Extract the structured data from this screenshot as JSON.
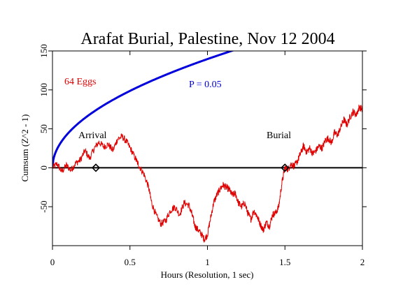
{
  "chart_data": {
    "type": "line",
    "title": "Arafat Burial, Palestine, Nov 12 2004",
    "xlabel": "Hours (Resolution, 1 sec)",
    "ylabel": "Cumsum (Z^2 - 1)",
    "xlim": [
      0,
      2
    ],
    "ylim": [
      -100,
      150
    ],
    "x_ticks": [
      {
        "value": 0,
        "label": "0"
      },
      {
        "value": 0.5,
        "label": "0.5"
      },
      {
        "value": 1,
        "label": "1"
      },
      {
        "value": 1.5,
        "label": "1.5"
      },
      {
        "value": 2,
        "label": "2"
      }
    ],
    "y_ticks": [
      {
        "value": -50,
        "label": "-50"
      },
      {
        "value": 0,
        "label": "0"
      },
      {
        "value": 50,
        "label": "50"
      },
      {
        "value": 100,
        "label": "100"
      },
      {
        "value": 150,
        "label": "150"
      }
    ],
    "grid": false,
    "series": [
      {
        "name": "64 Eggs",
        "color": "#e00000",
        "points": [
          [
            0.0,
            0
          ],
          [
            0.03,
            5
          ],
          [
            0.06,
            -5
          ],
          [
            0.09,
            3
          ],
          [
            0.12,
            -3
          ],
          [
            0.15,
            6
          ],
          [
            0.18,
            10
          ],
          [
            0.21,
            22
          ],
          [
            0.24,
            12
          ],
          [
            0.27,
            25
          ],
          [
            0.3,
            33
          ],
          [
            0.33,
            27
          ],
          [
            0.36,
            30
          ],
          [
            0.39,
            22
          ],
          [
            0.42,
            37
          ],
          [
            0.45,
            40
          ],
          [
            0.48,
            33
          ],
          [
            0.51,
            22
          ],
          [
            0.54,
            10
          ],
          [
            0.56,
            2
          ],
          [
            0.59,
            -8
          ],
          [
            0.62,
            -25
          ],
          [
            0.64,
            -45
          ],
          [
            0.67,
            -62
          ],
          [
            0.7,
            -72
          ],
          [
            0.73,
            -68
          ],
          [
            0.76,
            -55
          ],
          [
            0.79,
            -50
          ],
          [
            0.82,
            -60
          ],
          [
            0.85,
            -45
          ],
          [
            0.88,
            -48
          ],
          [
            0.9,
            -60
          ],
          [
            0.92,
            -75
          ],
          [
            0.94,
            -80
          ],
          [
            0.96,
            -85
          ],
          [
            0.98,
            -92
          ],
          [
            1.0,
            -86
          ],
          [
            1.02,
            -65
          ],
          [
            1.04,
            -45
          ],
          [
            1.06,
            -35
          ],
          [
            1.08,
            -28
          ],
          [
            1.1,
            -22
          ],
          [
            1.12,
            -25
          ],
          [
            1.14,
            -28
          ],
          [
            1.16,
            -35
          ],
          [
            1.18,
            -33
          ],
          [
            1.2,
            -45
          ],
          [
            1.22,
            -50
          ],
          [
            1.24,
            -45
          ],
          [
            1.26,
            -58
          ],
          [
            1.28,
            -66
          ],
          [
            1.3,
            -55
          ],
          [
            1.32,
            -62
          ],
          [
            1.34,
            -72
          ],
          [
            1.36,
            -80
          ],
          [
            1.38,
            -70
          ],
          [
            1.4,
            -75
          ],
          [
            1.42,
            -60
          ],
          [
            1.44,
            -58
          ],
          [
            1.46,
            -50
          ],
          [
            1.48,
            -20
          ],
          [
            1.5,
            0
          ],
          [
            1.52,
            -2
          ],
          [
            1.54,
            5
          ],
          [
            1.56,
            2
          ],
          [
            1.58,
            8
          ],
          [
            1.6,
            18
          ],
          [
            1.62,
            28
          ],
          [
            1.64,
            20
          ],
          [
            1.66,
            25
          ],
          [
            1.68,
            18
          ],
          [
            1.7,
            22
          ],
          [
            1.72,
            28
          ],
          [
            1.74,
            25
          ],
          [
            1.76,
            35
          ],
          [
            1.78,
            38
          ],
          [
            1.8,
            32
          ],
          [
            1.82,
            45
          ],
          [
            1.84,
            42
          ],
          [
            1.86,
            52
          ],
          [
            1.88,
            62
          ],
          [
            1.9,
            55
          ],
          [
            1.92,
            65
          ],
          [
            1.94,
            72
          ],
          [
            1.96,
            68
          ],
          [
            1.98,
            78
          ],
          [
            2.0,
            75
          ]
        ]
      }
    ],
    "reference_lines": [
      {
        "label": "P = 0.05",
        "color": "#0000dd",
        "form": "1.645*sqrt(2*x*3600)",
        "x_range": [
          0,
          2
        ]
      },
      {
        "y": 0,
        "color": "#000000"
      }
    ],
    "annotations": [
      {
        "text": "64 Eggs",
        "color": "#e00000"
      },
      {
        "text": "P = 0.05",
        "color": "#0000dd"
      },
      {
        "text": "Arrival",
        "marker_x": 0.28,
        "marker_y": 0
      },
      {
        "text": "Burial",
        "marker_x": 1.5,
        "marker_y": 0
      }
    ]
  }
}
